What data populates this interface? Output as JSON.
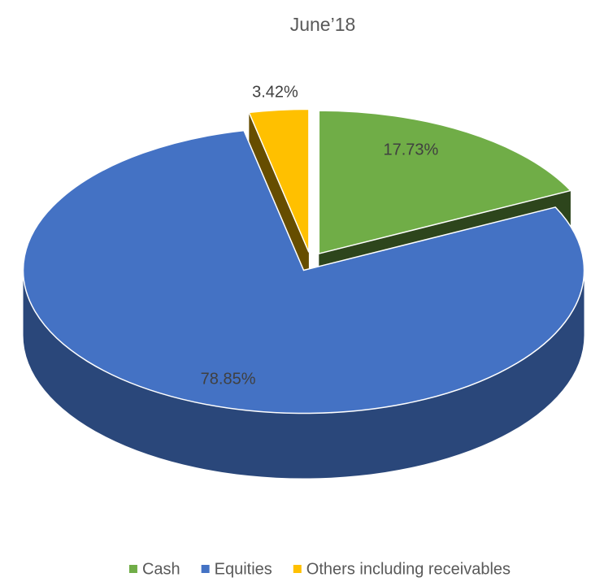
{
  "chart_data": {
    "type": "pie",
    "title": "June’18",
    "categories": [
      "Cash",
      "Equities",
      "Others including receivables"
    ],
    "values": [
      17.73,
      78.85,
      3.42
    ],
    "value_labels": [
      "17.73%",
      "78.85%",
      "3.42%"
    ],
    "colors": [
      "#70ad47",
      "#4472c4",
      "#ffc000"
    ],
    "legend": "bottom"
  }
}
